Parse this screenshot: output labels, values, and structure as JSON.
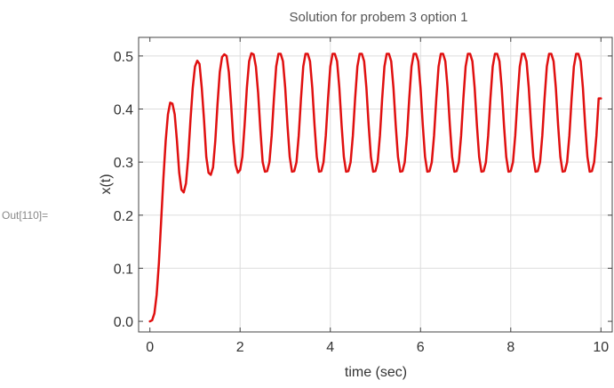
{
  "cell": {
    "out_label": "Out[110]="
  },
  "chart_data": {
    "type": "line",
    "title": "Solution for probem 3 option 1",
    "xlabel": "time (sec)",
    "ylabel": "x(t)",
    "xlim": [
      -0.25,
      10.25
    ],
    "ylim": [
      -0.02,
      0.535
    ],
    "xticks": [
      0,
      2,
      4,
      6,
      8,
      10
    ],
    "xtick_labels": [
      "0",
      "2",
      "4",
      "6",
      "8",
      "10"
    ],
    "yticks": [
      0.0,
      0.1,
      0.2,
      0.3,
      0.4,
      0.5
    ],
    "ytick_labels": [
      "0.0",
      "0.1",
      "0.2",
      "0.3",
      "0.4",
      "0.5"
    ],
    "grid": true,
    "series": [
      {
        "color": "#e01010",
        "points": [
          [
            0,
            0
          ],
          [
            0.05,
            0.002
          ],
          [
            0.1,
            0.015
          ],
          [
            0.15,
            0.05
          ],
          [
            0.2,
            0.11
          ],
          [
            0.25,
            0.19
          ],
          [
            0.3,
            0.27
          ],
          [
            0.35,
            0.34
          ],
          [
            0.4,
            0.39
          ],
          [
            0.45,
            0.412
          ],
          [
            0.5,
            0.41
          ],
          [
            0.55,
            0.39
          ],
          [
            0.6,
            0.34
          ],
          [
            0.65,
            0.28
          ],
          [
            0.7,
            0.248
          ],
          [
            0.75,
            0.243
          ],
          [
            0.8,
            0.26
          ],
          [
            0.85,
            0.31
          ],
          [
            0.9,
            0.38
          ],
          [
            0.95,
            0.44
          ],
          [
            1.0,
            0.48
          ],
          [
            1.05,
            0.491
          ],
          [
            1.1,
            0.485
          ],
          [
            1.15,
            0.44
          ],
          [
            1.2,
            0.38
          ],
          [
            1.25,
            0.31
          ],
          [
            1.3,
            0.28
          ],
          [
            1.35,
            0.276
          ],
          [
            1.4,
            0.29
          ],
          [
            1.45,
            0.34
          ],
          [
            1.5,
            0.41
          ],
          [
            1.55,
            0.47
          ],
          [
            1.6,
            0.498
          ],
          [
            1.65,
            0.503
          ],
          [
            1.7,
            0.5
          ],
          [
            1.75,
            0.47
          ],
          [
            1.8,
            0.41
          ],
          [
            1.85,
            0.34
          ],
          [
            1.9,
            0.295
          ],
          [
            1.95,
            0.28
          ],
          [
            2.0,
            0.285
          ],
          [
            2.05,
            0.31
          ],
          [
            2.1,
            0.37
          ],
          [
            2.15,
            0.44
          ],
          [
            2.2,
            0.49
          ],
          [
            2.25,
            0.505
          ],
          [
            2.3,
            0.503
          ],
          [
            2.35,
            0.48
          ],
          [
            2.4,
            0.43
          ],
          [
            2.45,
            0.36
          ],
          [
            2.5,
            0.3
          ],
          [
            2.55,
            0.282
          ],
          [
            2.6,
            0.283
          ],
          [
            2.65,
            0.3
          ],
          [
            2.7,
            0.35
          ],
          [
            2.75,
            0.42
          ],
          [
            2.8,
            0.48
          ],
          [
            2.85,
            0.504
          ],
          [
            2.9,
            0.504
          ],
          [
            2.95,
            0.49
          ],
          [
            3.0,
            0.44
          ],
          [
            3.05,
            0.37
          ],
          [
            3.1,
            0.31
          ],
          [
            3.15,
            0.282
          ],
          [
            3.2,
            0.283
          ],
          [
            3.25,
            0.3
          ],
          [
            3.3,
            0.35
          ],
          [
            3.35,
            0.42
          ],
          [
            3.4,
            0.48
          ],
          [
            3.45,
            0.504
          ],
          [
            3.5,
            0.504
          ],
          [
            3.55,
            0.49
          ],
          [
            3.6,
            0.44
          ],
          [
            3.65,
            0.37
          ],
          [
            3.7,
            0.31
          ],
          [
            3.75,
            0.282
          ],
          [
            3.8,
            0.283
          ],
          [
            3.85,
            0.3
          ],
          [
            3.9,
            0.35
          ],
          [
            3.95,
            0.42
          ],
          [
            4.0,
            0.48
          ],
          [
            4.05,
            0.504
          ],
          [
            4.1,
            0.504
          ],
          [
            4.15,
            0.49
          ],
          [
            4.2,
            0.44
          ],
          [
            4.25,
            0.37
          ],
          [
            4.3,
            0.31
          ],
          [
            4.35,
            0.282
          ],
          [
            4.4,
            0.283
          ],
          [
            4.45,
            0.3
          ],
          [
            4.5,
            0.35
          ],
          [
            4.55,
            0.42
          ],
          [
            4.6,
            0.48
          ],
          [
            4.65,
            0.504
          ],
          [
            4.7,
            0.504
          ],
          [
            4.75,
            0.49
          ],
          [
            4.8,
            0.44
          ],
          [
            4.85,
            0.37
          ],
          [
            4.9,
            0.31
          ],
          [
            4.95,
            0.282
          ],
          [
            5.0,
            0.283
          ],
          [
            5.05,
            0.3
          ],
          [
            5.1,
            0.35
          ],
          [
            5.15,
            0.42
          ],
          [
            5.2,
            0.48
          ],
          [
            5.25,
            0.504
          ],
          [
            5.3,
            0.504
          ],
          [
            5.35,
            0.49
          ],
          [
            5.4,
            0.44
          ],
          [
            5.45,
            0.37
          ],
          [
            5.5,
            0.31
          ],
          [
            5.55,
            0.282
          ],
          [
            5.6,
            0.283
          ],
          [
            5.65,
            0.3
          ],
          [
            5.7,
            0.35
          ],
          [
            5.75,
            0.42
          ],
          [
            5.8,
            0.48
          ],
          [
            5.85,
            0.504
          ],
          [
            5.9,
            0.504
          ],
          [
            5.95,
            0.49
          ],
          [
            6.0,
            0.44
          ],
          [
            6.05,
            0.37
          ],
          [
            6.1,
            0.31
          ],
          [
            6.15,
            0.282
          ],
          [
            6.2,
            0.283
          ],
          [
            6.25,
            0.3
          ],
          [
            6.3,
            0.35
          ],
          [
            6.35,
            0.42
          ],
          [
            6.4,
            0.48
          ],
          [
            6.45,
            0.504
          ],
          [
            6.5,
            0.504
          ],
          [
            6.55,
            0.49
          ],
          [
            6.6,
            0.44
          ],
          [
            6.65,
            0.37
          ],
          [
            6.7,
            0.31
          ],
          [
            6.75,
            0.282
          ],
          [
            6.8,
            0.283
          ],
          [
            6.85,
            0.3
          ],
          [
            6.9,
            0.35
          ],
          [
            6.95,
            0.42
          ],
          [
            7.0,
            0.48
          ],
          [
            7.05,
            0.504
          ],
          [
            7.1,
            0.504
          ],
          [
            7.15,
            0.49
          ],
          [
            7.2,
            0.44
          ],
          [
            7.25,
            0.37
          ],
          [
            7.3,
            0.31
          ],
          [
            7.35,
            0.282
          ],
          [
            7.4,
            0.283
          ],
          [
            7.45,
            0.3
          ],
          [
            7.5,
            0.35
          ],
          [
            7.55,
            0.42
          ],
          [
            7.6,
            0.48
          ],
          [
            7.65,
            0.504
          ],
          [
            7.7,
            0.504
          ],
          [
            7.75,
            0.49
          ],
          [
            7.8,
            0.44
          ],
          [
            7.85,
            0.37
          ],
          [
            7.9,
            0.31
          ],
          [
            7.95,
            0.282
          ],
          [
            8.0,
            0.283
          ],
          [
            8.05,
            0.3
          ],
          [
            8.1,
            0.35
          ],
          [
            8.15,
            0.42
          ],
          [
            8.2,
            0.48
          ],
          [
            8.25,
            0.504
          ],
          [
            8.3,
            0.504
          ],
          [
            8.35,
            0.49
          ],
          [
            8.4,
            0.44
          ],
          [
            8.45,
            0.37
          ],
          [
            8.5,
            0.31
          ],
          [
            8.55,
            0.282
          ],
          [
            8.6,
            0.283
          ],
          [
            8.65,
            0.3
          ],
          [
            8.7,
            0.35
          ],
          [
            8.75,
            0.42
          ],
          [
            8.8,
            0.48
          ],
          [
            8.85,
            0.504
          ],
          [
            8.9,
            0.504
          ],
          [
            8.95,
            0.49
          ],
          [
            9.0,
            0.44
          ],
          [
            9.05,
            0.37
          ],
          [
            9.1,
            0.31
          ],
          [
            9.15,
            0.282
          ],
          [
            9.2,
            0.283
          ],
          [
            9.25,
            0.3
          ],
          [
            9.3,
            0.35
          ],
          [
            9.35,
            0.42
          ],
          [
            9.4,
            0.48
          ],
          [
            9.45,
            0.504
          ],
          [
            9.5,
            0.504
          ],
          [
            9.55,
            0.49
          ],
          [
            9.6,
            0.44
          ],
          [
            9.65,
            0.37
          ],
          [
            9.7,
            0.31
          ],
          [
            9.75,
            0.282
          ],
          [
            9.8,
            0.283
          ],
          [
            9.85,
            0.3
          ],
          [
            9.9,
            0.35
          ],
          [
            9.95,
            0.42
          ],
          [
            10.0,
            0.42
          ]
        ]
      }
    ]
  }
}
